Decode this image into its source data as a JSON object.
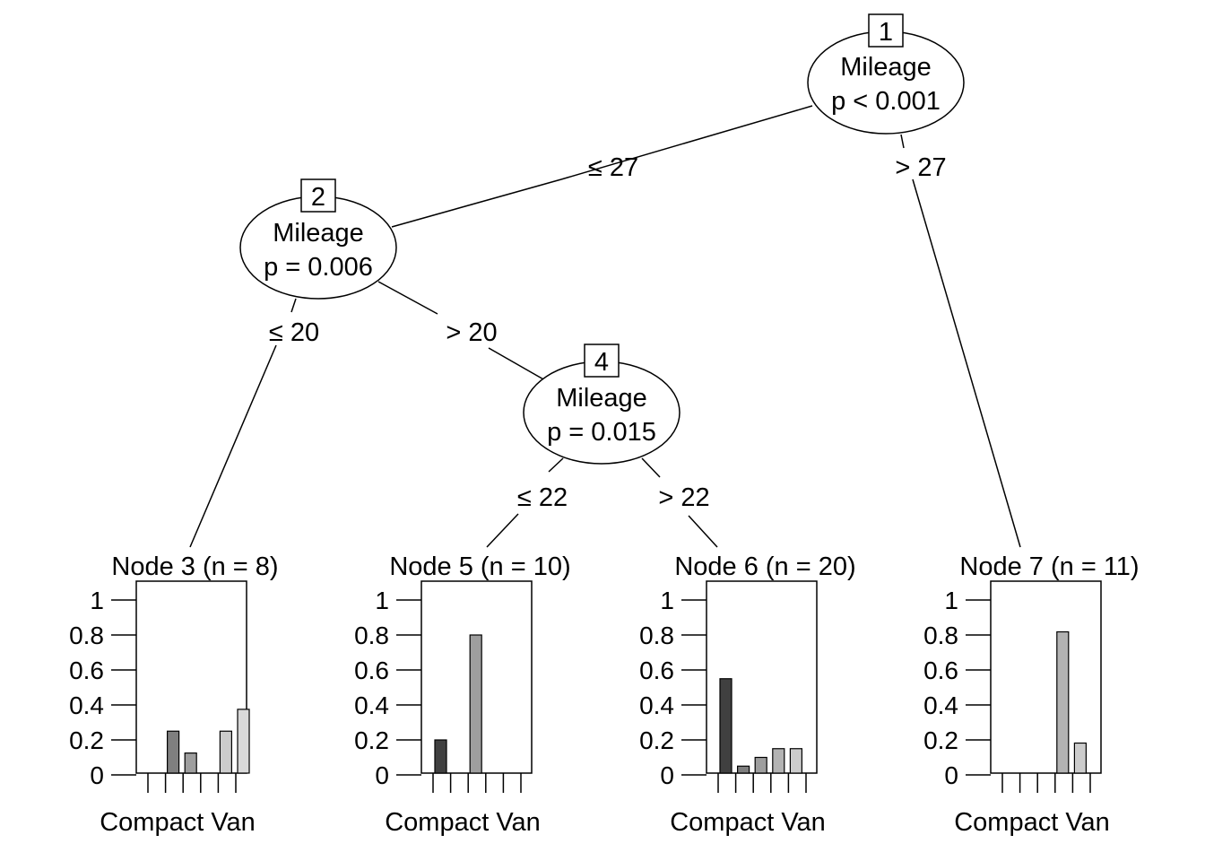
{
  "tree": {
    "inner_nodes": [
      {
        "id": "1",
        "variable": "Mileage",
        "pvalue": "p < 0.001"
      },
      {
        "id": "2",
        "variable": "Mileage",
        "pvalue": "p = 0.006"
      },
      {
        "id": "4",
        "variable": "Mileage",
        "pvalue": "p = 0.015"
      }
    ],
    "edges": [
      {
        "from": "1",
        "to": "2",
        "label": "≤ 27"
      },
      {
        "from": "1",
        "to": "7",
        "label": "> 27"
      },
      {
        "from": "2",
        "to": "3",
        "label": "≤ 20"
      },
      {
        "from": "2",
        "to": "4",
        "label": "> 20"
      },
      {
        "from": "4",
        "to": "5",
        "label": "≤ 22"
      },
      {
        "from": "4",
        "to": "6",
        "label": "> 22"
      }
    ]
  },
  "chart_data": [
    {
      "type": "bar",
      "title": "Node 3 (n = 8)",
      "xlabel": "Compact Van",
      "ylim": [
        0,
        1
      ],
      "yticks": [
        "0",
        "0.2",
        "0.4",
        "0.6",
        "0.8",
        "1"
      ],
      "values": [
        0,
        0.25,
        0.125,
        0,
        0.25,
        0.375
      ]
    },
    {
      "type": "bar",
      "title": "Node 5 (n = 10)",
      "xlabel": "Compact Van",
      "ylim": [
        0,
        1
      ],
      "yticks": [
        "0",
        "0.2",
        "0.4",
        "0.6",
        "0.8",
        "1"
      ],
      "values": [
        0.2,
        0,
        0.8,
        0,
        0,
        0
      ]
    },
    {
      "type": "bar",
      "title": "Node 6 (n = 20)",
      "xlabel": "Compact Van",
      "ylim": [
        0,
        1
      ],
      "yticks": [
        "0",
        "0.2",
        "0.4",
        "0.6",
        "0.8",
        "1"
      ],
      "values": [
        0.55,
        0.05,
        0.1,
        0.15,
        0.15,
        0
      ]
    },
    {
      "type": "bar",
      "title": "Node 7 (n = 11)",
      "xlabel": "Compact Van",
      "ylim": [
        0,
        1
      ],
      "yticks": [
        "0",
        "0.2",
        "0.4",
        "0.6",
        "0.8",
        "1"
      ],
      "values": [
        0,
        0,
        0,
        0.818,
        0.182,
        0
      ]
    }
  ],
  "colors": {
    "bar_fills": [
      "#404040",
      "#7f7f7f",
      "#9e9e9e",
      "#b3b3b3",
      "#cccccc",
      "#d9d9d9"
    ],
    "stroke": "#000000"
  }
}
